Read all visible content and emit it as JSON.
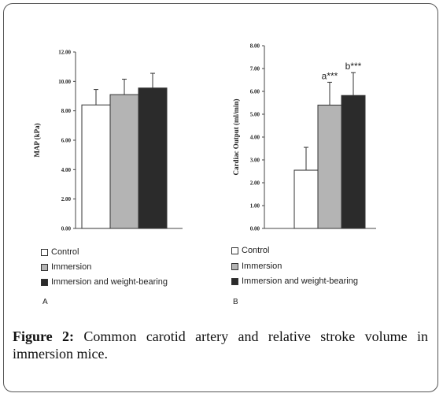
{
  "chart_data": [
    {
      "type": "bar",
      "panel": "A",
      "ylabel": "MAP (kPa)",
      "ylim": [
        0,
        12
      ],
      "yticks": [
        "0.00",
        "2.00",
        "4.00",
        "6.00",
        "8.00",
        "10.00",
        "12.00"
      ],
      "series": [
        {
          "name": "Control",
          "value": 8.4,
          "error": 1.05,
          "color": "#ffffff"
        },
        {
          "name": "Immersion",
          "value": 9.1,
          "error": 1.05,
          "color": "#b4b4b4"
        },
        {
          "name": "Immersion and weight-bearing",
          "value": 9.55,
          "error": 1.0,
          "color": "#2b2b2b"
        }
      ],
      "annotations": []
    },
    {
      "type": "bar",
      "panel": "B",
      "ylabel": "Cardiac Output (ml/min)",
      "ylim": [
        0,
        8
      ],
      "yticks": [
        "0.00",
        "1.00",
        "2.00",
        "3.00",
        "4.00",
        "5.00",
        "6.00",
        "7.00",
        "8.00"
      ],
      "series": [
        {
          "name": "Control",
          "value": 2.55,
          "error": 1.0,
          "color": "#ffffff"
        },
        {
          "name": "Immersion",
          "value": 5.4,
          "error": 1.0,
          "color": "#b4b4b4"
        },
        {
          "name": "Immersion and weight-bearing",
          "value": 5.82,
          "error": 1.0,
          "color": "#2b2b2b"
        }
      ],
      "annotations": [
        {
          "series_index": 1,
          "text": "a***"
        },
        {
          "series_index": 2,
          "text": "b***"
        }
      ]
    }
  ],
  "legend": {
    "items": [
      "Control",
      "Immersion",
      "Immersion and weight-bearing"
    ]
  },
  "panel_labels": [
    "A",
    "B"
  ],
  "caption": {
    "label": "Figure 2:",
    "text": " Common carotid artery and relative stroke volume in immersion mice."
  }
}
